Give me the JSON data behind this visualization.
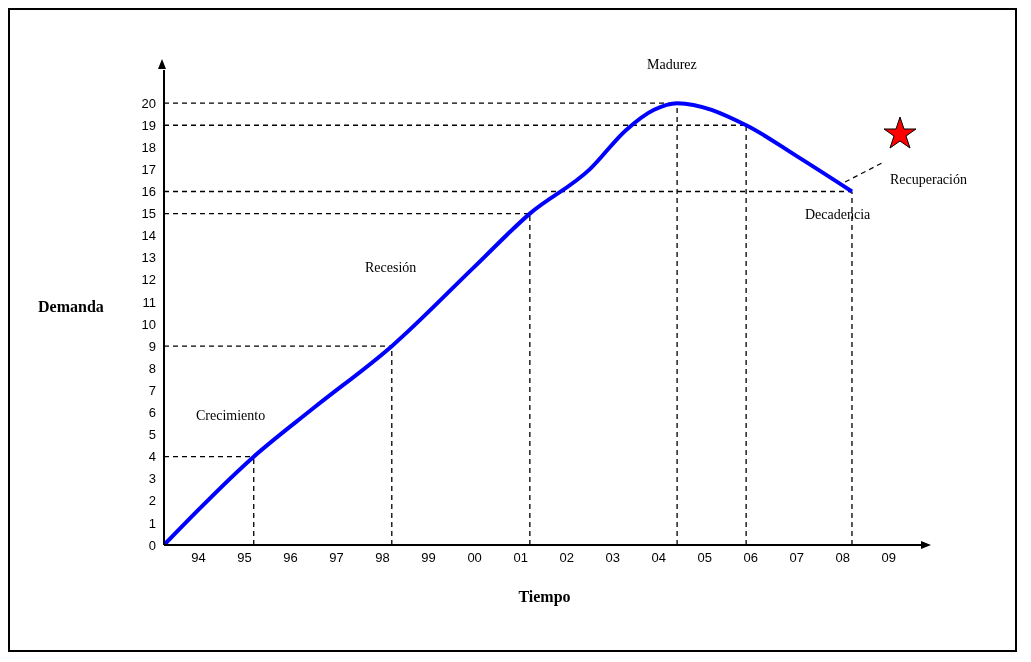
{
  "chart_data": {
    "type": "line",
    "xlabel": "Tiempo",
    "ylabel": "Demanda",
    "x": [
      1993.25,
      1995.2,
      1996.5,
      1998.2,
      2000,
      2001.2,
      2002.5,
      2003.3,
      2003.9,
      2004.4,
      2005.9,
      2007,
      2008.2
    ],
    "series": [
      {
        "color": "#0000ff",
        "values": [
          0,
          4,
          6.2,
          9,
          12.6,
          15,
          17,
          18.8,
          19.7,
          20,
          19,
          17.6,
          16
        ]
      }
    ],
    "xlim": [
      1993.25,
      2009.7
    ],
    "xticks": [
      {
        "value": 1994,
        "label": "94"
      },
      {
        "value": 1995,
        "label": "95"
      },
      {
        "value": 1996,
        "label": "96"
      },
      {
        "value": 1997,
        "label": "97"
      },
      {
        "value": 1998,
        "label": "98"
      },
      {
        "value": 1999,
        "label": "99"
      },
      {
        "value": 2000,
        "label": "00"
      },
      {
        "value": 2001,
        "label": "01"
      },
      {
        "value": 2002,
        "label": "02"
      },
      {
        "value": 2003,
        "label": "03"
      },
      {
        "value": 2004,
        "label": "04"
      },
      {
        "value": 2005,
        "label": "05"
      },
      {
        "value": 2006,
        "label": "06"
      },
      {
        "value": 2007,
        "label": "07"
      },
      {
        "value": 2008,
        "label": "08"
      },
      {
        "value": 2009,
        "label": "09"
      }
    ],
    "ylim": [
      0,
      21.5
    ],
    "yticks": [
      0,
      1,
      2,
      3,
      4,
      5,
      6,
      7,
      8,
      9,
      10,
      11,
      12,
      13,
      14,
      15,
      16,
      17,
      18,
      19,
      20
    ],
    "ref_lines": [
      {
        "axis": "y",
        "value": 4,
        "line_style": "dashed"
      },
      {
        "axis": "y",
        "value": 9,
        "line_style": "dashed"
      },
      {
        "axis": "y",
        "value": 15,
        "line_style": "dashed"
      },
      {
        "axis": "y",
        "value": 16,
        "line_style": "dashed"
      },
      {
        "axis": "y",
        "value": 19,
        "line_style": "dashed"
      },
      {
        "axis": "y",
        "value": 20,
        "line_style": "dashed"
      },
      {
        "axis": "x",
        "value": 1995.2,
        "line_style": "dashed"
      },
      {
        "axis": "x",
        "value": 1998.2,
        "line_style": "dashed"
      },
      {
        "axis": "x",
        "value": 2001.2,
        "line_style": "dashed"
      },
      {
        "axis": "x",
        "value": 2004.4,
        "line_style": "dashed"
      },
      {
        "axis": "x",
        "value": 2005.9,
        "line_style": "dashed"
      },
      {
        "axis": "x",
        "value": 2008.2,
        "line_style": "dashed"
      }
    ],
    "annotations": [
      "Crecimiento",
      "Recesión",
      "Madurez",
      "Decadencia",
      "Recuperación"
    ],
    "marker": "none",
    "line_style": "solid"
  }
}
